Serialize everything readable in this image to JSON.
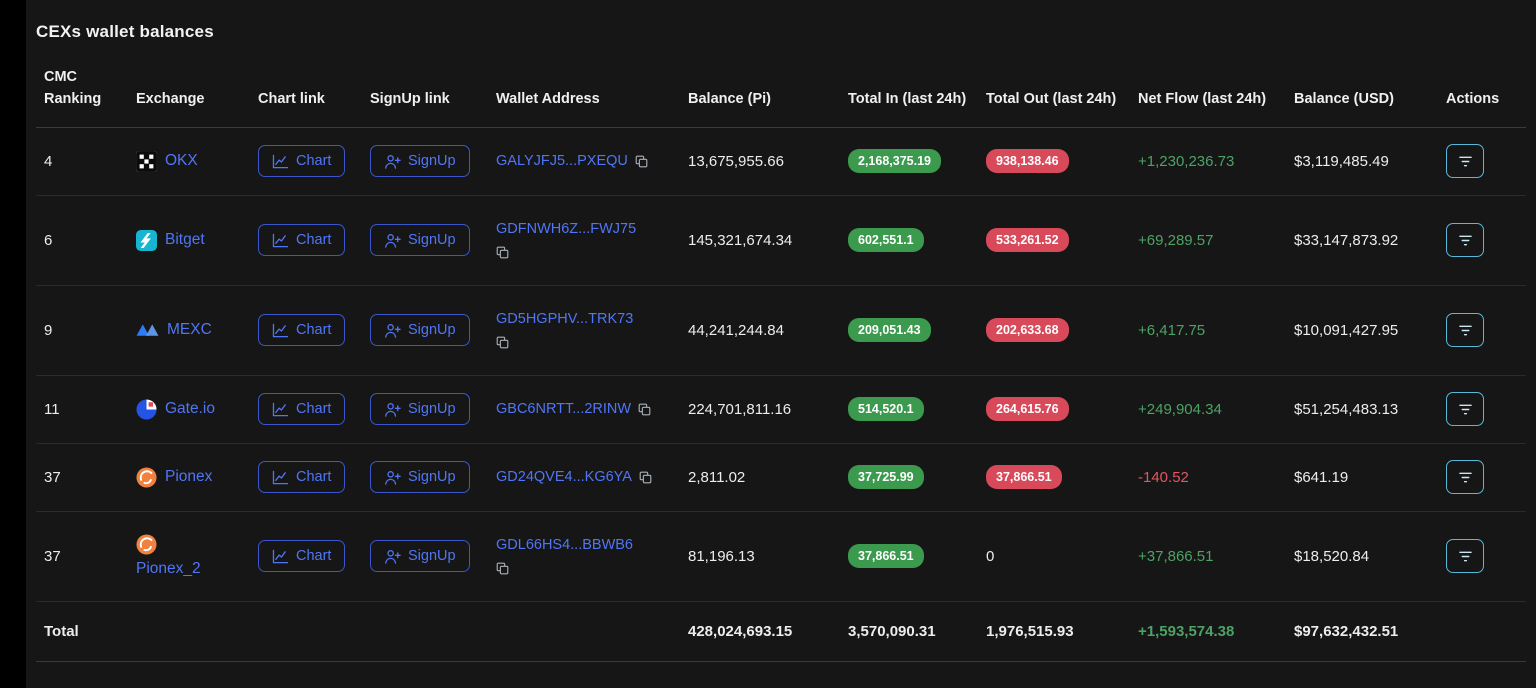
{
  "title": "CEXs wallet balances",
  "colors": {
    "accent_blue": "#5076f6",
    "link_blue": "#5076f6",
    "button_border": "#3a56cc",
    "badge_green": "#3b9a4d",
    "badge_red": "#d8495a",
    "flow_green": "#4da265",
    "flow_red": "#e25563",
    "action_border": "#59b7d8"
  },
  "table": {
    "headers": [
      "CMC Ranking",
      "Exchange",
      "Chart link",
      "SignUp link",
      "Wallet Address",
      "Balance (Pi)",
      "Total In (last 24h)",
      "Total Out (last 24h)",
      "Net Flow (last 24h)",
      "Balance (USD)",
      "Actions"
    ],
    "chart_label": "Chart",
    "signup_label": "SignUp",
    "rows": [
      {
        "rank": "4",
        "exchange": "OKX",
        "icon": "okx",
        "name_wrap": false,
        "address": "GALYJFJ5...PXEQU",
        "copy_below": false,
        "balance_pi": "13,675,955.66",
        "total_in": "2,168,375.19",
        "total_out": "938,138.46",
        "out_badge": true,
        "net_flow": "+1,230,236.73",
        "net_flow_sign": "pos",
        "balance_usd": "$3,119,485.49"
      },
      {
        "rank": "6",
        "exchange": "Bitget",
        "icon": "bitget",
        "name_wrap": false,
        "address": "GDFNWH6Z...FWJ75",
        "copy_below": true,
        "balance_pi": "145,321,674.34",
        "total_in": "602,551.1",
        "total_out": "533,261.52",
        "out_badge": true,
        "net_flow": "+69,289.57",
        "net_flow_sign": "pos",
        "balance_usd": "$33,147,873.92"
      },
      {
        "rank": "9",
        "exchange": "MEXC",
        "icon": "mexc",
        "name_wrap": false,
        "address": "GD5HGPHV...TRK73",
        "copy_below": true,
        "balance_pi": "44,241,244.84",
        "total_in": "209,051.43",
        "total_out": "202,633.68",
        "out_badge": true,
        "net_flow": "+6,417.75",
        "net_flow_sign": "pos",
        "balance_usd": "$10,091,427.95"
      },
      {
        "rank": "11",
        "exchange": "Gate.io",
        "icon": "gate",
        "name_wrap": false,
        "address": "GBC6NRTT...2RINW",
        "copy_below": false,
        "balance_pi": "224,701,811.16",
        "total_in": "514,520.1",
        "total_out": "264,615.76",
        "out_badge": true,
        "net_flow": "+249,904.34",
        "net_flow_sign": "pos",
        "balance_usd": "$51,254,483.13"
      },
      {
        "rank": "37",
        "exchange": "Pionex",
        "icon": "pionex",
        "name_wrap": false,
        "address": "GD24QVE4...KG6YA",
        "copy_below": false,
        "balance_pi": "2,811.02",
        "total_in": "37,725.99",
        "total_out": "37,866.51",
        "out_badge": true,
        "net_flow": "-140.52",
        "net_flow_sign": "neg",
        "balance_usd": "$641.19"
      },
      {
        "rank": "37",
        "exchange": "Pionex_2",
        "icon": "pionex",
        "name_wrap": true,
        "address": "GDL66HS4...BBWB6",
        "copy_below": true,
        "balance_pi": "81,196.13",
        "total_in": "37,866.51",
        "total_out": "0",
        "out_badge": false,
        "net_flow": "+37,866.51",
        "net_flow_sign": "pos",
        "balance_usd": "$18,520.84"
      }
    ],
    "total": {
      "label": "Total",
      "balance_pi": "428,024,693.15",
      "total_in": "3,570,090.31",
      "total_out": "1,976,515.93",
      "net_flow": "+1,593,574.38",
      "net_flow_sign": "pos",
      "balance_usd": "$97,632,432.51"
    }
  }
}
